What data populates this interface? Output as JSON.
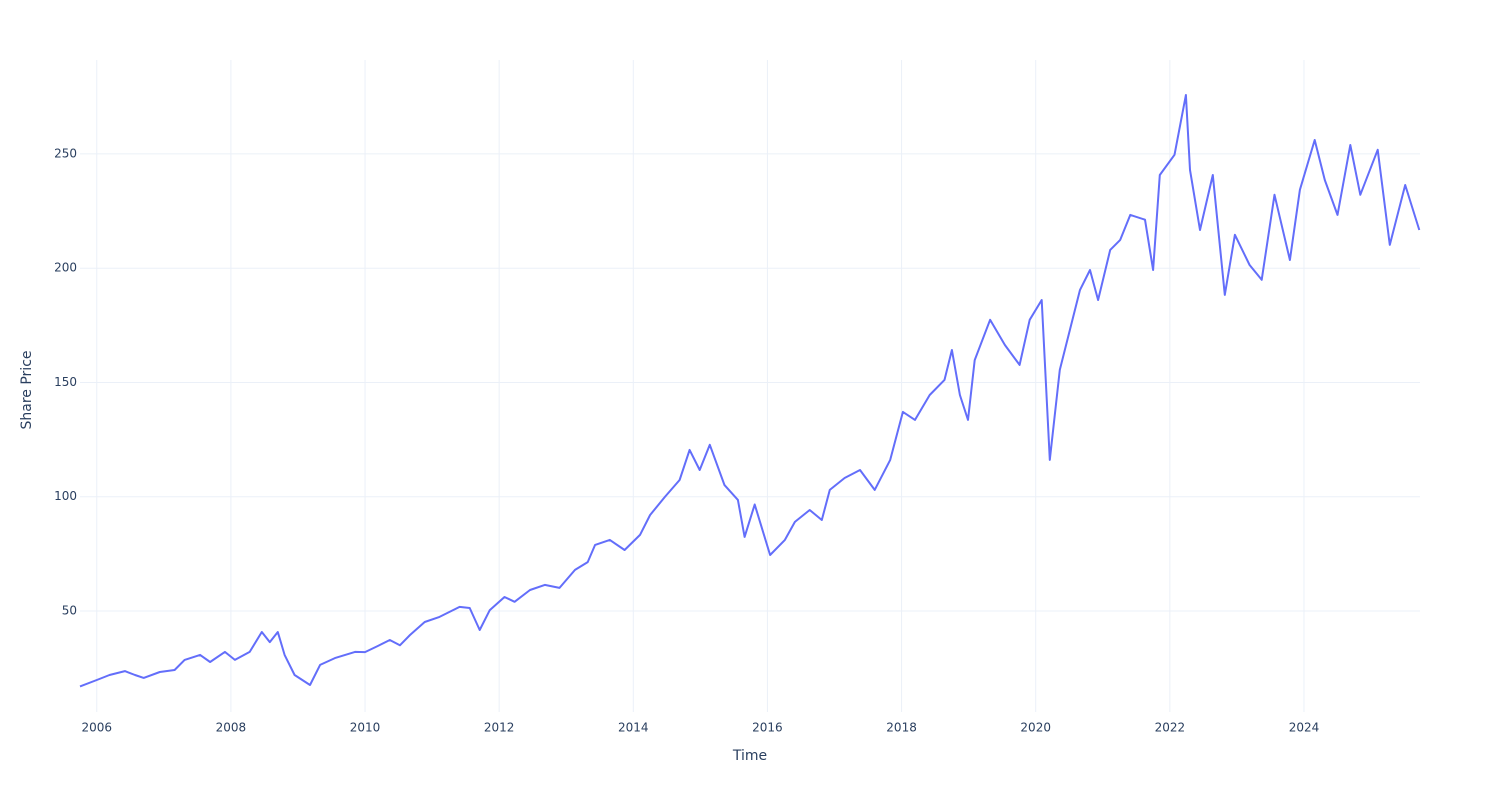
{
  "chart_data": {
    "type": "line",
    "xlabel": "Time",
    "ylabel": "Share Price",
    "x": [
      2005.75,
      2006.0,
      2006.19,
      2006.42,
      2006.57,
      2006.7,
      2006.94,
      2007.16,
      2007.31,
      2007.54,
      2007.69,
      2007.91,
      2008.06,
      2008.28,
      2008.46,
      2008.58,
      2008.7,
      2008.8,
      2008.95,
      2009.18,
      2009.33,
      2009.55,
      2009.85,
      2010.0,
      2010.19,
      2010.37,
      2010.52,
      2010.67,
      2010.89,
      2011.11,
      2011.41,
      2011.56,
      2011.71,
      2011.86,
      2012.08,
      2012.23,
      2012.46,
      2012.68,
      2012.9,
      2013.13,
      2013.32,
      2013.43,
      2013.65,
      2013.87,
      2014.1,
      2014.25,
      2014.47,
      2014.69,
      2014.84,
      2014.99,
      2015.14,
      2015.36,
      2015.56,
      2015.66,
      2015.81,
      2016.04,
      2016.26,
      2016.41,
      2016.63,
      2016.81,
      2016.93,
      2017.15,
      2017.38,
      2017.6,
      2017.83,
      2018.02,
      2018.2,
      2018.42,
      2018.64,
      2018.75,
      2018.87,
      2018.99,
      2019.09,
      2019.32,
      2019.54,
      2019.76,
      2019.91,
      2020.09,
      2020.21,
      2020.36,
      2020.51,
      2020.66,
      2020.81,
      2020.93,
      2021.11,
      2021.26,
      2021.41,
      2021.63,
      2021.75,
      2021.85,
      2022.07,
      2022.24,
      2022.3,
      2022.45,
      2022.64,
      2022.82,
      2022.97,
      2023.19,
      2023.37,
      2023.56,
      2023.79,
      2023.94,
      2024.16,
      2024.31,
      2024.5,
      2024.69,
      2024.84,
      2025.1,
      2025.28,
      2025.51,
      2025.72
    ],
    "series": [
      {
        "name": "Share Price",
        "color": "#636efa",
        "values": [
          17,
          19.8,
          22,
          23.7,
          22,
          20.7,
          23.3,
          24.2,
          28.6,
          30.8,
          27.7,
          32.1,
          28.6,
          32.1,
          40.8,
          36.4,
          40.8,
          30.8,
          22,
          17.6,
          26.4,
          29.4,
          32.1,
          32,
          34.7,
          37.3,
          35,
          39.5,
          45.2,
          47.4,
          51.8,
          51.3,
          41.7,
          50.4,
          56.1,
          54,
          59.2,
          61.4,
          60.1,
          68,
          71.4,
          78.9,
          81.1,
          76.7,
          83.3,
          92,
          99.9,
          107.3,
          120.5,
          111.7,
          122.7,
          105.1,
          98.6,
          82.4,
          96.6,
          74.5,
          81.1,
          89,
          94.2,
          89.8,
          103,
          108.2,
          111.7,
          103,
          116.1,
          137.1,
          133.6,
          144.5,
          151.1,
          164.2,
          144.5,
          133.6,
          159.8,
          177.4,
          166.4,
          157.7,
          177.4,
          186.1,
          116.1,
          155.5,
          173,
          190.5,
          199.2,
          186.1,
          208,
          212.4,
          223.3,
          221.2,
          199.2,
          240.8,
          249.6,
          275.8,
          243,
          216.7,
          240.8,
          188.3,
          214.6,
          201.4,
          194.9,
          232.1,
          203.6,
          234.3,
          256.1,
          238.6,
          223.3,
          253.9,
          232.1,
          251.8,
          210.2,
          236.4,
          216.7
        ]
      }
    ],
    "xlim": [
      2005.75,
      2025.73
    ],
    "xticks": [
      2006,
      2008,
      2010,
      2012,
      2014,
      2016,
      2018,
      2020,
      2022,
      2024
    ],
    "ylim": [
      5.8,
      291.1
    ],
    "yticks": [
      50,
      100,
      150,
      200,
      250
    ],
    "grid": true
  }
}
